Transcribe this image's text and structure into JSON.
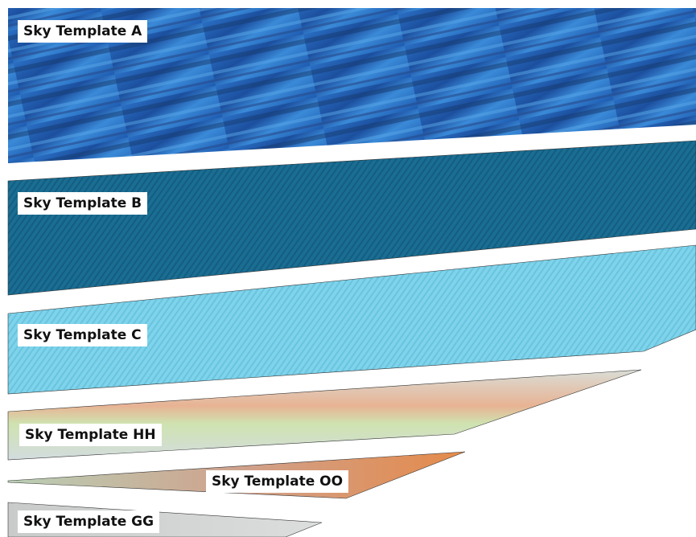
{
  "templates": [
    {
      "label": "Sky Template A"
    },
    {
      "label": "Sky Template B"
    },
    {
      "label": "Sky Template C"
    },
    {
      "label": "Sky Template HH"
    },
    {
      "label": "Sky Template OO"
    },
    {
      "label": "Sky Template GG"
    }
  ]
}
